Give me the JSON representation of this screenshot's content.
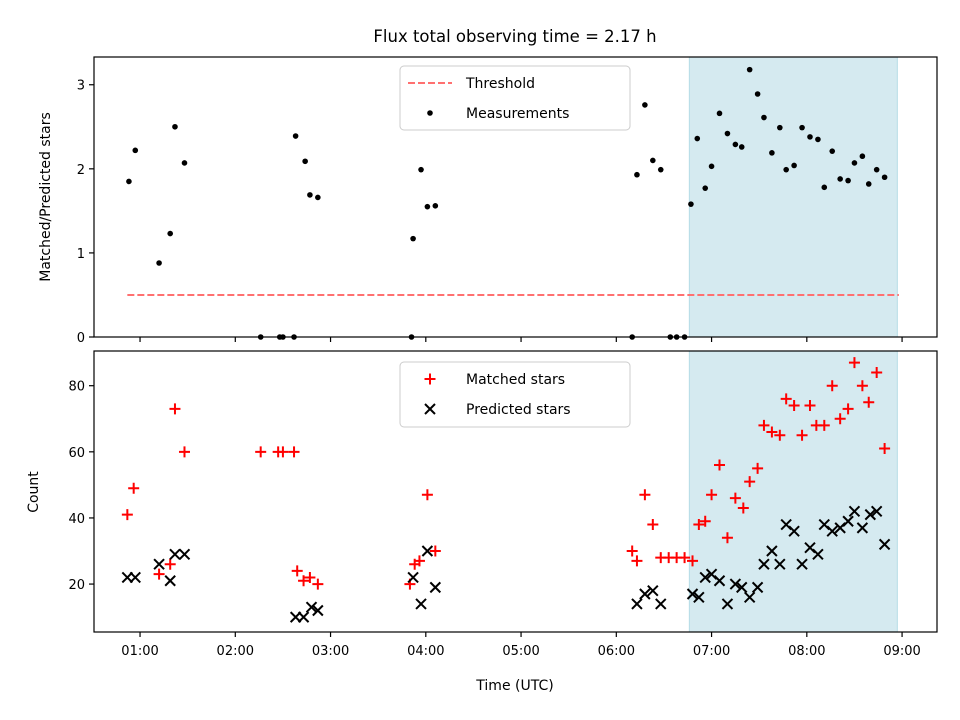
{
  "chart_data": [
    {
      "type": "scatter",
      "title": "Flux total observing time = 2.17 h",
      "xlabel": "",
      "ylabel": "Matched/Predicted stars",
      "xlim": [
        "00:31",
        "09:22"
      ],
      "ylim": [
        0,
        3.33
      ],
      "yticks": [
        0,
        1,
        2,
        3
      ],
      "highlight_span": [
        "06:46",
        "08:57"
      ],
      "highlight_color": "#d5eaf0",
      "legend_position": "top-center",
      "series": [
        {
          "name": "Threshold",
          "kind": "dashed-line",
          "color": "#ff7070",
          "points": [
            [
              "00:52",
              0.5
            ],
            [
              "08:58",
              0.5
            ]
          ]
        },
        {
          "name": "Measurements",
          "kind": "dot",
          "color": "#000000",
          "points": [
            [
              "00:53",
              1.85
            ],
            [
              "00:57",
              2.22
            ],
            [
              "01:12",
              0.88
            ],
            [
              "01:19",
              1.23
            ],
            [
              "01:22",
              2.5
            ],
            [
              "01:28",
              2.07
            ],
            [
              "02:16",
              0.0
            ],
            [
              "02:28",
              0.0
            ],
            [
              "02:30",
              0.0
            ],
            [
              "02:37",
              0.0
            ],
            [
              "02:38",
              2.39
            ],
            [
              "02:44",
              2.09
            ],
            [
              "02:47",
              1.69
            ],
            [
              "02:52",
              1.66
            ],
            [
              "03:51",
              0.0
            ],
            [
              "03:52",
              1.17
            ],
            [
              "03:57",
              1.99
            ],
            [
              "04:01",
              1.55
            ],
            [
              "04:06",
              1.56
            ],
            [
              "06:10",
              0.0
            ],
            [
              "06:13",
              1.93
            ],
            [
              "06:18",
              2.76
            ],
            [
              "06:23",
              2.1
            ],
            [
              "06:28",
              1.99
            ],
            [
              "06:34",
              0.0
            ],
            [
              "06:38",
              0.0
            ],
            [
              "06:43",
              0.0
            ],
            [
              "06:47",
              1.58
            ],
            [
              "06:51",
              2.36
            ],
            [
              "06:56",
              1.77
            ],
            [
              "07:00",
              2.03
            ],
            [
              "07:05",
              2.66
            ],
            [
              "07:10",
              2.42
            ],
            [
              "07:15",
              2.29
            ],
            [
              "07:19",
              2.26
            ],
            [
              "07:24",
              3.18
            ],
            [
              "07:29",
              2.89
            ],
            [
              "07:33",
              2.61
            ],
            [
              "07:38",
              2.19
            ],
            [
              "07:43",
              2.49
            ],
            [
              "07:47",
              1.99
            ],
            [
              "07:52",
              2.04
            ],
            [
              "07:57",
              2.49
            ],
            [
              "08:02",
              2.38
            ],
            [
              "08:07",
              2.35
            ],
            [
              "08:11",
              1.78
            ],
            [
              "08:16",
              2.21
            ],
            [
              "08:21",
              1.88
            ],
            [
              "08:26",
              1.86
            ],
            [
              "08:30",
              2.07
            ],
            [
              "08:35",
              2.15
            ],
            [
              "08:39",
              1.82
            ],
            [
              "08:44",
              1.99
            ],
            [
              "08:49",
              1.9
            ]
          ]
        }
      ]
    },
    {
      "type": "scatter",
      "title": "",
      "xlabel": "Time (UTC)",
      "ylabel": "Count",
      "xlim": [
        "00:31",
        "09:22"
      ],
      "ylim": [
        5.5,
        90.5
      ],
      "yticks": [
        20,
        40,
        60,
        80
      ],
      "xticks": [
        "01:00",
        "02:00",
        "03:00",
        "04:00",
        "05:00",
        "06:00",
        "07:00",
        "08:00",
        "09:00"
      ],
      "highlight_span": [
        "06:46",
        "08:57"
      ],
      "highlight_color": "#d5eaf0",
      "legend_position": "top-center",
      "series": [
        {
          "name": "Matched stars",
          "kind": "plus",
          "color": "#ff0000",
          "points": [
            [
              "00:52",
              41
            ],
            [
              "00:56",
              49
            ],
            [
              "01:12",
              23
            ],
            [
              "01:19",
              26
            ],
            [
              "01:22",
              73
            ],
            [
              "01:28",
              60
            ],
            [
              "02:16",
              60
            ],
            [
              "02:27",
              60
            ],
            [
              "02:30",
              60
            ],
            [
              "02:37",
              60
            ],
            [
              "02:39",
              24
            ],
            [
              "02:43",
              21
            ],
            [
              "02:47",
              22
            ],
            [
              "02:52",
              20
            ],
            [
              "03:50",
              20
            ],
            [
              "03:53",
              26
            ],
            [
              "03:56",
              27
            ],
            [
              "04:01",
              47
            ],
            [
              "04:06",
              30
            ],
            [
              "06:10",
              30
            ],
            [
              "06:13",
              27
            ],
            [
              "06:18",
              47
            ],
            [
              "06:23",
              38
            ],
            [
              "06:28",
              28
            ],
            [
              "06:33",
              28
            ],
            [
              "06:38",
              28
            ],
            [
              "06:43",
              28
            ],
            [
              "06:48",
              27
            ],
            [
              "06:52",
              38
            ],
            [
              "06:56",
              39
            ],
            [
              "07:00",
              47
            ],
            [
              "07:05",
              56
            ],
            [
              "07:10",
              34
            ],
            [
              "07:15",
              46
            ],
            [
              "07:20",
              43
            ],
            [
              "07:24",
              51
            ],
            [
              "07:29",
              55
            ],
            [
              "07:33",
              68
            ],
            [
              "07:38",
              66
            ],
            [
              "07:43",
              65
            ],
            [
              "07:47",
              76
            ],
            [
              "07:52",
              74
            ],
            [
              "07:57",
              65
            ],
            [
              "08:02",
              74
            ],
            [
              "08:06",
              68
            ],
            [
              "08:11",
              68
            ],
            [
              "08:16",
              80
            ],
            [
              "08:21",
              70
            ],
            [
              "08:26",
              73
            ],
            [
              "08:30",
              87
            ],
            [
              "08:35",
              80
            ],
            [
              "08:39",
              75
            ],
            [
              "08:44",
              84
            ],
            [
              "08:49",
              61
            ]
          ]
        },
        {
          "name": "Predicted stars",
          "kind": "x",
          "color": "#000000",
          "points": [
            [
              "00:52",
              22
            ],
            [
              "00:57",
              22
            ],
            [
              "01:12",
              26
            ],
            [
              "01:19",
              21
            ],
            [
              "01:22",
              29
            ],
            [
              "01:28",
              29
            ],
            [
              "02:38",
              10
            ],
            [
              "02:43",
              10
            ],
            [
              "02:48",
              13
            ],
            [
              "02:52",
              12
            ],
            [
              "03:52",
              22
            ],
            [
              "03:57",
              14
            ],
            [
              "04:01",
              30
            ],
            [
              "04:06",
              19
            ],
            [
              "06:13",
              14
            ],
            [
              "06:18",
              17
            ],
            [
              "06:23",
              18
            ],
            [
              "06:28",
              14
            ],
            [
              "06:48",
              17
            ],
            [
              "06:52",
              16
            ],
            [
              "06:56",
              22
            ],
            [
              "07:00",
              23
            ],
            [
              "07:05",
              21
            ],
            [
              "07:10",
              14
            ],
            [
              "07:15",
              20
            ],
            [
              "07:19",
              19
            ],
            [
              "07:24",
              16
            ],
            [
              "07:29",
              19
            ],
            [
              "07:33",
              26
            ],
            [
              "07:38",
              30
            ],
            [
              "07:43",
              26
            ],
            [
              "07:47",
              38
            ],
            [
              "07:52",
              36
            ],
            [
              "07:57",
              26
            ],
            [
              "08:02",
              31
            ],
            [
              "08:07",
              29
            ],
            [
              "08:11",
              38
            ],
            [
              "08:16",
              36
            ],
            [
              "08:21",
              37
            ],
            [
              "08:26",
              39
            ],
            [
              "08:30",
              42
            ],
            [
              "08:35",
              37
            ],
            [
              "08:40",
              41
            ],
            [
              "08:44",
              42
            ],
            [
              "08:49",
              32
            ]
          ]
        }
      ]
    }
  ]
}
